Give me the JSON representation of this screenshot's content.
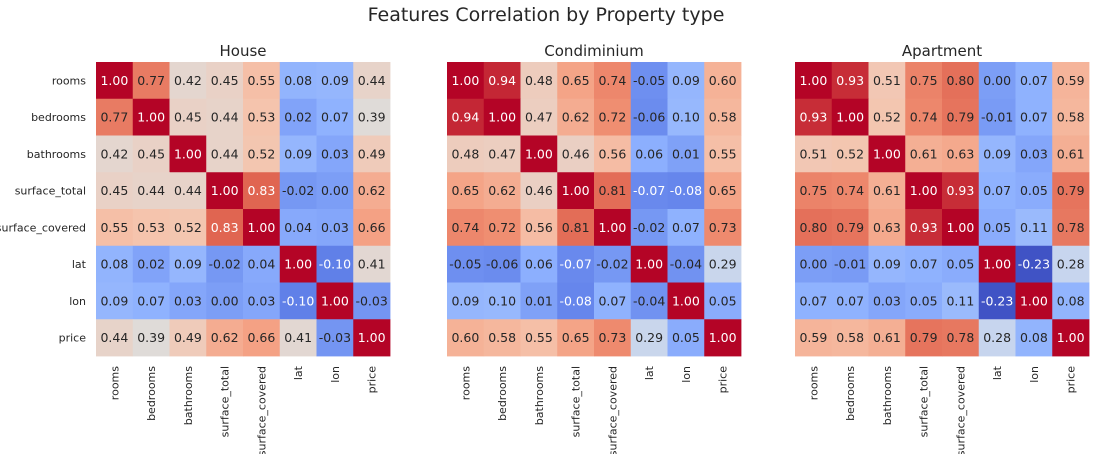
{
  "chart_data": {
    "type": "heatmap",
    "title": "Features Correlation by Property type",
    "colormap": "coolwarm",
    "value_range": [
      -1,
      1
    ],
    "features": [
      "rooms",
      "bedrooms",
      "bathrooms",
      "surface_total",
      "surface_covered",
      "lat",
      "lon",
      "price"
    ],
    "panels": [
      {
        "title": "House",
        "show_row_labels": true,
        "matrix": [
          [
            1.0,
            0.77,
            0.42,
            0.45,
            0.55,
            0.08,
            0.09,
            0.44
          ],
          [
            0.77,
            1.0,
            0.45,
            0.44,
            0.53,
            0.02,
            0.07,
            0.39
          ],
          [
            0.42,
            0.45,
            1.0,
            0.44,
            0.52,
            0.09,
            0.03,
            0.49
          ],
          [
            0.45,
            0.44,
            0.44,
            1.0,
            0.83,
            -0.02,
            0.0,
            0.62
          ],
          [
            0.55,
            0.53,
            0.52,
            0.83,
            1.0,
            0.04,
            0.03,
            0.66
          ],
          [
            0.08,
            0.02,
            0.09,
            -0.02,
            0.04,
            1.0,
            -0.1,
            0.41
          ],
          [
            0.09,
            0.07,
            0.03,
            0.0,
            0.03,
            -0.1,
            1.0,
            -0.03
          ],
          [
            0.44,
            0.39,
            0.49,
            0.62,
            0.66,
            0.41,
            -0.03,
            1.0
          ]
        ]
      },
      {
        "title": "Condiminium",
        "show_row_labels": false,
        "matrix": [
          [
            1.0,
            0.94,
            0.48,
            0.65,
            0.74,
            -0.05,
            0.09,
            0.6
          ],
          [
            0.94,
            1.0,
            0.47,
            0.62,
            0.72,
            -0.06,
            0.1,
            0.58
          ],
          [
            0.48,
            0.47,
            1.0,
            0.46,
            0.56,
            0.06,
            0.01,
            0.55
          ],
          [
            0.65,
            0.62,
            0.46,
            1.0,
            0.81,
            -0.07,
            -0.08,
            0.65
          ],
          [
            0.74,
            0.72,
            0.56,
            0.81,
            1.0,
            -0.02,
            0.07,
            0.73
          ],
          [
            -0.05,
            -0.06,
            0.06,
            -0.07,
            -0.02,
            1.0,
            -0.04,
            0.29
          ],
          [
            0.09,
            0.1,
            0.01,
            -0.08,
            0.07,
            -0.04,
            1.0,
            0.05
          ],
          [
            0.6,
            0.58,
            0.55,
            0.65,
            0.73,
            0.29,
            0.05,
            1.0
          ]
        ]
      },
      {
        "title": "Apartment",
        "show_row_labels": false,
        "matrix": [
          [
            1.0,
            0.93,
            0.51,
            0.75,
            0.8,
            0.0,
            0.07,
            0.59
          ],
          [
            0.93,
            1.0,
            0.52,
            0.74,
            0.79,
            -0.01,
            0.07,
            0.58
          ],
          [
            0.51,
            0.52,
            1.0,
            0.61,
            0.63,
            0.09,
            0.03,
            0.61
          ],
          [
            0.75,
            0.74,
            0.61,
            1.0,
            0.93,
            0.07,
            0.05,
            0.79
          ],
          [
            0.8,
            0.79,
            0.63,
            0.93,
            1.0,
            0.05,
            0.11,
            0.78
          ],
          [
            0.0,
            -0.01,
            0.09,
            0.07,
            0.05,
            1.0,
            -0.23,
            0.28
          ],
          [
            0.07,
            0.07,
            0.03,
            0.05,
            0.11,
            -0.23,
            1.0,
            0.08
          ],
          [
            0.59,
            0.58,
            0.61,
            0.79,
            0.78,
            0.28,
            0.08,
            1.0
          ]
        ]
      }
    ]
  }
}
